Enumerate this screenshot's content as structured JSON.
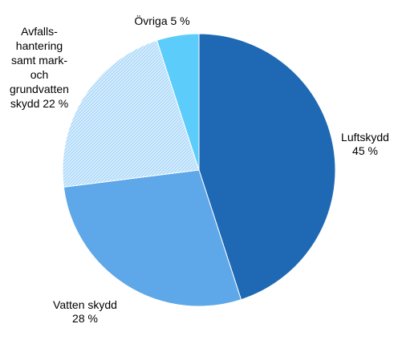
{
  "chart_data": {
    "type": "pie",
    "title": "",
    "start": "top, clockwise",
    "unit": "%",
    "slices": [
      {
        "label_lines": [
          "Luftskydd",
          "45 %"
        ],
        "value": 45,
        "color": "#1f69b4",
        "pattern": "solid"
      },
      {
        "label_lines": [
          "Vatten skydd",
          "28 %"
        ],
        "value": 28,
        "color": "#5ea7e8",
        "pattern": "solid"
      },
      {
        "label_lines": [
          "Avfalls-",
          "hantering",
          "samt mark-",
          "och",
          "grundvatten",
          "skydd 22 %"
        ],
        "value": 22,
        "color": "#d9eefc",
        "pattern": "hatched",
        "pattern_color": "#9fd3fb"
      },
      {
        "label_lines": [
          "Övriga 5 %"
        ],
        "value": 5,
        "color": "#5ccdfb",
        "pattern": "solid"
      }
    ]
  }
}
